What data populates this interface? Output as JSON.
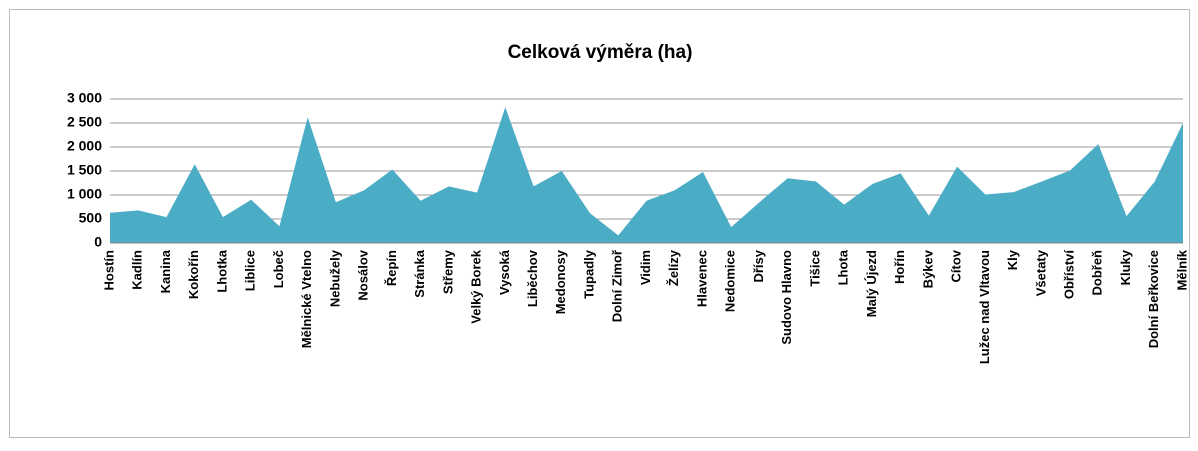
{
  "chart_data": {
    "type": "area",
    "title": "Celková výměra (ha)",
    "categories": [
      "Hostín",
      "Kadlín",
      "Kanina",
      "Kokořín",
      "Lhotka",
      "Liblice",
      "Lobeč",
      "Mělnické Vtelno",
      "Nebužely",
      "Nosálov",
      "Řepín",
      "Stránka",
      "Střemy",
      "Velký Borek",
      "Vysoká",
      "Liběchov",
      "Medonosy",
      "Tupadly",
      "Dolní Zimoř",
      "Vidim",
      "Želízy",
      "Hlavenec",
      "Nedomice",
      "Dřísy",
      "Sudovo Hlavno",
      "Tišice",
      "Lhota",
      "Malý Újezd",
      "Hořín",
      "Býkev",
      "Cítov",
      "Lužec nad Vltavou",
      "Kly",
      "Všetaty",
      "Obříství",
      "Dobřeň",
      "Kluky",
      "Dolní Beřkovice",
      "Mělník"
    ],
    "values": [
      630,
      680,
      540,
      1640,
      540,
      900,
      350,
      2620,
      850,
      1100,
      1530,
      880,
      1180,
      1050,
      2830,
      1180,
      1500,
      620,
      160,
      880,
      1100,
      1480,
      330,
      850,
      1350,
      1280,
      800,
      1230,
      1450,
      570,
      1590,
      1010,
      1060,
      1280,
      1510,
      2060,
      560,
      1280,
      2500
    ],
    "color": "#4bacc6",
    "ylim": [
      0,
      3000
    ],
    "yticks": [
      0,
      500,
      {
        "value": 1000,
        "label": "1 000"
      },
      {
        "value": 1500,
        "label": "1 500"
      },
      {
        "value": 2000,
        "label": "2 000"
      },
      {
        "value": 2500,
        "label": "2 500"
      },
      {
        "value": 3000,
        "label": "3 000"
      }
    ],
    "grid": true
  }
}
